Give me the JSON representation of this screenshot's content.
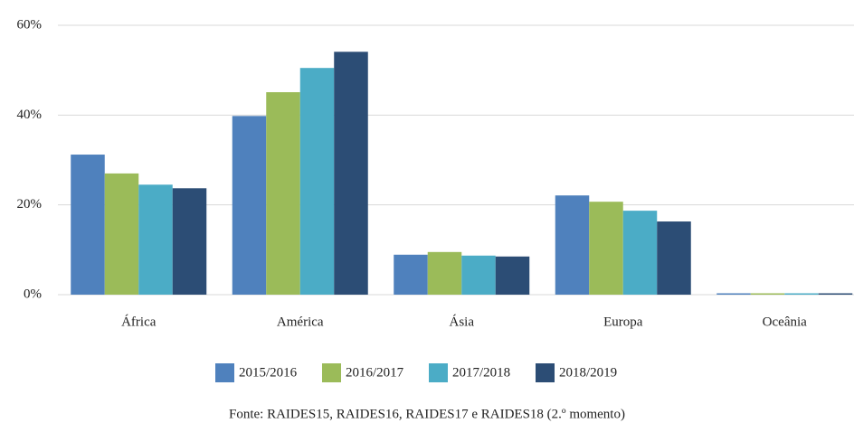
{
  "chart_data": {
    "type": "bar",
    "categories": [
      "África",
      "América",
      "Ásia",
      "Europa",
      "Oceânia"
    ],
    "series": [
      {
        "name": "2015/2016",
        "color": "#4f81bd",
        "values": [
          31.2,
          39.8,
          8.9,
          22.1,
          0.3
        ]
      },
      {
        "name": "2016/2017",
        "color": "#9bbb59",
        "values": [
          27.0,
          45.1,
          9.5,
          20.7,
          0.3
        ]
      },
      {
        "name": "2017/2018",
        "color": "#4bacc6",
        "values": [
          24.5,
          50.5,
          8.7,
          18.7,
          0.3
        ]
      },
      {
        "name": "2018/2019",
        "color": "#2c4d75",
        "values": [
          23.7,
          54.1,
          8.5,
          16.3,
          0.3
        ]
      }
    ],
    "ylim": [
      0,
      60
    ],
    "yticks": [
      {
        "value": 0,
        "label": "0%"
      },
      {
        "value": 20,
        "label": "20%"
      },
      {
        "value": 40,
        "label": "40%"
      },
      {
        "value": 60,
        "label": "60%"
      }
    ],
    "grid": true,
    "legend": "bottom",
    "note": "Fonte: RAIDES15, RAIDES16, RAIDES17 e RAIDES18 (2.º momento)"
  }
}
